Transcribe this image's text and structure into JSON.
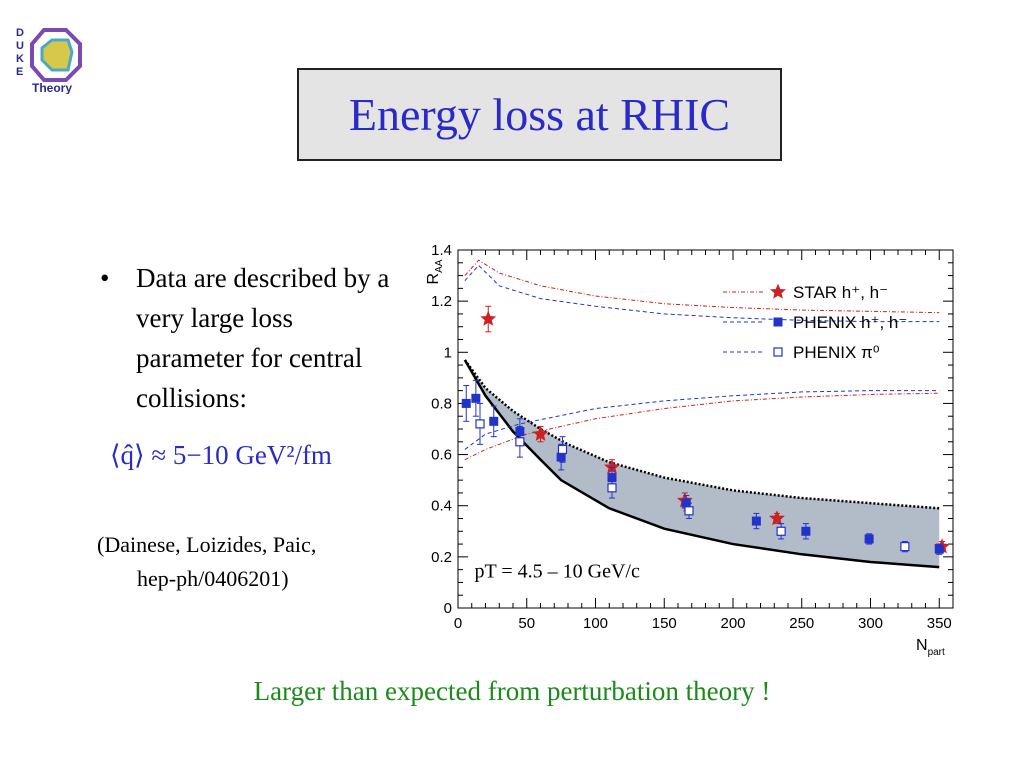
{
  "slide": {
    "title": "Energy loss at RHIC",
    "bullet": "Data are described by a very large loss parameter for central collisions:",
    "formula": "⟨q̂⟩ ≈ 5−10 GeV²/fm",
    "citation_line1": "(Dainese, Loizides, Paic,",
    "citation_line2": "hep-ph/0406201)",
    "footer": "Larger than expected from perturbation theory !",
    "logo": {
      "letters": [
        "D",
        "U",
        "K",
        "E"
      ],
      "text": "Theory"
    }
  },
  "chart_data": {
    "type": "scatter",
    "ylabel": "R_AA",
    "xlabel": "N_part",
    "xlim": [
      0,
      360
    ],
    "ylim": [
      0,
      1.4
    ],
    "xticks": [
      0,
      50,
      100,
      150,
      200,
      250,
      300,
      350
    ],
    "yticks": [
      0,
      0.2,
      0.4,
      0.6,
      0.8,
      1,
      1.2,
      1.4
    ],
    "annotation": "pT = 4.5 – 10 GeV/c",
    "legend_position": "top-right",
    "legend": [
      {
        "label": "STAR  h⁺, h⁻",
        "color": "#cc2222",
        "marker": "star",
        "line": "dash-dot"
      },
      {
        "label": "PHENIX  h⁺, h⁻",
        "color": "#2233cc",
        "marker": "square",
        "line": "dashed"
      },
      {
        "label": "PHENIX  π⁰",
        "color": "#2233cc",
        "marker": "open-square",
        "line": "dashed"
      }
    ],
    "band_upper": [
      [
        5,
        0.97
      ],
      [
        20,
        0.86
      ],
      [
        40,
        0.77
      ],
      [
        60,
        0.7
      ],
      [
        80,
        0.64
      ],
      [
        110,
        0.57
      ],
      [
        150,
        0.51
      ],
      [
        200,
        0.46
      ],
      [
        250,
        0.43
      ],
      [
        300,
        0.41
      ],
      [
        350,
        0.39
      ]
    ],
    "band_lower": [
      [
        5,
        0.97
      ],
      [
        20,
        0.83
      ],
      [
        40,
        0.69
      ],
      [
        60,
        0.58
      ],
      [
        75,
        0.5
      ],
      [
        110,
        0.39
      ],
      [
        150,
        0.31
      ],
      [
        200,
        0.25
      ],
      [
        250,
        0.21
      ],
      [
        300,
        0.18
      ],
      [
        350,
        0.16
      ]
    ],
    "series": [
      {
        "name": "STAR  h⁺, h⁻",
        "marker": "star",
        "color": "#cc2222",
        "points": [
          [
            22,
            1.13,
            0.05
          ],
          [
            60,
            0.68,
            0.03
          ],
          [
            112,
            0.55,
            0.03
          ],
          [
            165,
            0.42,
            0.03
          ],
          [
            232,
            0.35,
            0.02
          ],
          [
            352,
            0.24,
            0.02
          ]
        ]
      },
      {
        "name": "PHENIX  h⁺, h⁻",
        "marker": "square",
        "color": "#2233cc",
        "points": [
          [
            6,
            0.8,
            0.07
          ],
          [
            13,
            0.82,
            0.07
          ],
          [
            26,
            0.73,
            0.06
          ],
          [
            45,
            0.69,
            0.05
          ],
          [
            75,
            0.59,
            0.05
          ],
          [
            112,
            0.51,
            0.04
          ],
          [
            166,
            0.41,
            0.03
          ],
          [
            217,
            0.34,
            0.03
          ],
          [
            253,
            0.3,
            0.03
          ],
          [
            299,
            0.27,
            0.02
          ],
          [
            350,
            0.23,
            0.02
          ]
        ]
      },
      {
        "name": "PHENIX  π⁰",
        "marker": "open-square",
        "color": "#2233cc",
        "points": [
          [
            16,
            0.72,
            0.08
          ],
          [
            45,
            0.65,
            0.06
          ],
          [
            76,
            0.62,
            0.05
          ],
          [
            112,
            0.47,
            0.04
          ],
          [
            168,
            0.38,
            0.03
          ],
          [
            235,
            0.3,
            0.03
          ],
          [
            325,
            0.24,
            0.02
          ]
        ]
      }
    ],
    "curves": [
      {
        "color": "#cc2222",
        "style": "dash-dot",
        "points": [
          [
            5,
            1.3
          ],
          [
            15,
            1.36
          ],
          [
            30,
            1.31
          ],
          [
            60,
            1.26
          ],
          [
            100,
            1.22
          ],
          [
            150,
            1.19
          ],
          [
            200,
            1.175
          ],
          [
            250,
            1.165
          ],
          [
            300,
            1.16
          ],
          [
            350,
            1.155
          ]
        ]
      },
      {
        "color": "#2233cc",
        "style": "dashed",
        "points": [
          [
            5,
            1.28
          ],
          [
            15,
            1.34
          ],
          [
            30,
            1.26
          ],
          [
            60,
            1.21
          ],
          [
            100,
            1.18
          ],
          [
            150,
            1.15
          ],
          [
            200,
            1.135
          ],
          [
            250,
            1.125
          ],
          [
            300,
            1.12
          ],
          [
            350,
            1.12
          ]
        ]
      },
      {
        "color": "#cc2222",
        "style": "dash-dot",
        "points": [
          [
            5,
            0.58
          ],
          [
            20,
            0.62
          ],
          [
            50,
            0.68
          ],
          [
            100,
            0.74
          ],
          [
            150,
            0.78
          ],
          [
            200,
            0.81
          ],
          [
            250,
            0.825
          ],
          [
            300,
            0.835
          ],
          [
            350,
            0.84
          ]
        ]
      },
      {
        "color": "#2233cc",
        "style": "dashed",
        "points": [
          [
            5,
            0.62
          ],
          [
            20,
            0.68
          ],
          [
            45,
            0.72
          ],
          [
            100,
            0.78
          ],
          [
            150,
            0.81
          ],
          [
            200,
            0.83
          ],
          [
            250,
            0.845
          ],
          [
            300,
            0.85
          ],
          [
            350,
            0.85
          ]
        ]
      }
    ]
  }
}
